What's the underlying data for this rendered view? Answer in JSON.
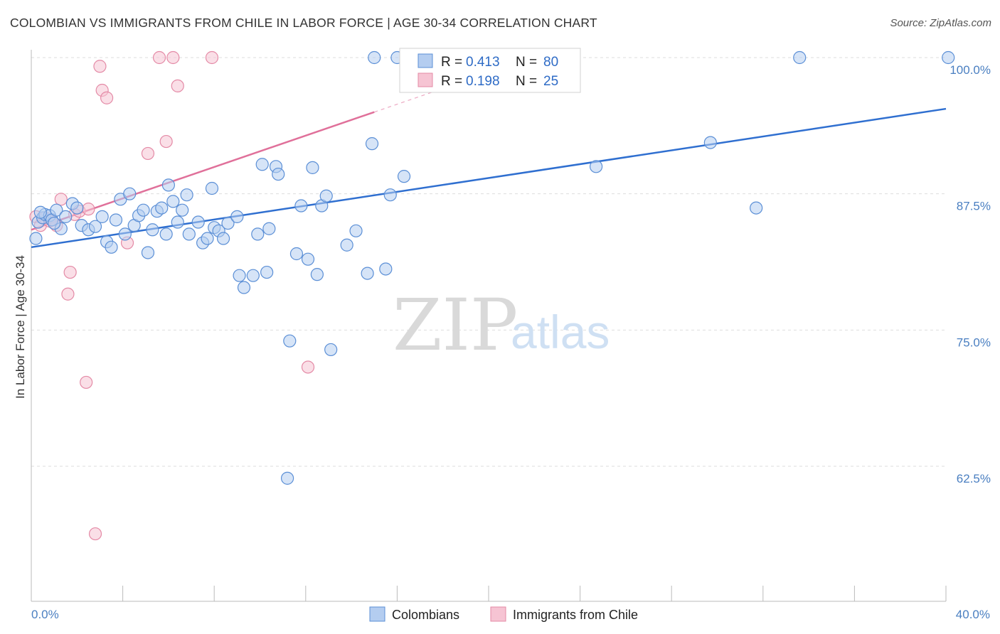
{
  "title": "COLOMBIAN VS IMMIGRANTS FROM CHILE IN LABOR FORCE | AGE 30-34 CORRELATION CHART",
  "source": "Source: ZipAtlas.com",
  "watermark": {
    "zip": "ZIP",
    "atlas": "atlas"
  },
  "colors": {
    "blue_fill": "#b4cdf0",
    "blue_stroke": "#5b8fd6",
    "blue_line": "#2f6fd0",
    "pink_fill": "#f6c4d3",
    "pink_stroke": "#e48aa6",
    "pink_line": "#e0709a",
    "grid": "#dddddd",
    "axis_text": "#4a7fc1"
  },
  "legend": {
    "rows": [
      {
        "r_label": "R =",
        "r_value": "0.413",
        "n_label": "N =",
        "n_value": "80"
      },
      {
        "r_label": "R =",
        "r_value": "0.198",
        "n_label": "N =",
        "n_value": "25"
      }
    ]
  },
  "chart_data": {
    "type": "scatter",
    "ylabel": "In Labor Force | Age 30-34",
    "xlim": [
      0,
      40
    ],
    "ylim": [
      50,
      100.5
    ],
    "x_tick_labels": [
      "0.0%",
      "40.0%"
    ],
    "y_ticks": [
      {
        "value": 100,
        "label": "100.0%"
      },
      {
        "value": 87.5,
        "label": "87.5%"
      },
      {
        "value": 75,
        "label": "75.0%"
      },
      {
        "value": 62.5,
        "label": "62.5%"
      }
    ],
    "series": [
      {
        "name": "Colombians",
        "trend": {
          "x0": 0,
          "y0": 82.6,
          "x1": 40,
          "y1": 95.3
        },
        "points": [
          [
            0.2,
            83.4
          ],
          [
            0.3,
            84.9
          ],
          [
            0.5,
            85.3
          ],
          [
            0.6,
            85.6
          ],
          [
            0.8,
            85.5
          ],
          [
            0.9,
            85.1
          ],
          [
            1.1,
            86.0
          ],
          [
            1.3,
            84.3
          ],
          [
            1.5,
            85.4
          ],
          [
            1.8,
            86.6
          ],
          [
            2.0,
            86.2
          ],
          [
            2.2,
            84.6
          ],
          [
            2.5,
            84.2
          ],
          [
            2.8,
            84.5
          ],
          [
            3.1,
            85.4
          ],
          [
            3.3,
            83.1
          ],
          [
            3.5,
            82.6
          ],
          [
            3.7,
            85.1
          ],
          [
            3.9,
            87.0
          ],
          [
            4.1,
            83.8
          ],
          [
            4.3,
            87.5
          ],
          [
            4.5,
            84.6
          ],
          [
            4.7,
            85.5
          ],
          [
            4.9,
            86.0
          ],
          [
            5.1,
            82.1
          ],
          [
            5.3,
            84.2
          ],
          [
            5.5,
            85.9
          ],
          [
            5.7,
            86.2
          ],
          [
            5.9,
            83.8
          ],
          [
            6.0,
            88.3
          ],
          [
            6.2,
            86.8
          ],
          [
            6.4,
            84.9
          ],
          [
            6.6,
            86.0
          ],
          [
            6.8,
            87.4
          ],
          [
            6.9,
            83.8
          ],
          [
            7.3,
            84.9
          ],
          [
            7.5,
            83.0
          ],
          [
            7.7,
            83.4
          ],
          [
            7.9,
            88.0
          ],
          [
            8.0,
            84.4
          ],
          [
            8.2,
            84.1
          ],
          [
            8.4,
            83.4
          ],
          [
            8.6,
            84.8
          ],
          [
            9.0,
            85.4
          ],
          [
            9.1,
            80.0
          ],
          [
            9.3,
            78.9
          ],
          [
            9.7,
            80.0
          ],
          [
            9.9,
            83.8
          ],
          [
            10.1,
            90.2
          ],
          [
            10.3,
            80.3
          ],
          [
            10.4,
            84.3
          ],
          [
            10.7,
            90.0
          ],
          [
            10.8,
            89.3
          ],
          [
            11.2,
            61.4
          ],
          [
            11.3,
            74.0
          ],
          [
            11.6,
            82.0
          ],
          [
            11.8,
            86.4
          ],
          [
            12.1,
            81.5
          ],
          [
            12.3,
            89.9
          ],
          [
            12.5,
            80.1
          ],
          [
            12.7,
            86.4
          ],
          [
            12.9,
            87.3
          ],
          [
            13.1,
            73.2
          ],
          [
            13.8,
            82.8
          ],
          [
            14.2,
            84.1
          ],
          [
            14.7,
            80.2
          ],
          [
            14.9,
            92.1
          ],
          [
            15.0,
            100.0
          ],
          [
            15.5,
            80.6
          ],
          [
            15.7,
            87.4
          ],
          [
            16.0,
            100.0
          ],
          [
            16.3,
            89.1
          ],
          [
            23.6,
            100.0
          ],
          [
            24.7,
            90.0
          ],
          [
            29.7,
            92.2
          ],
          [
            31.7,
            86.2
          ],
          [
            33.6,
            100.0
          ],
          [
            40.1,
            100.0
          ],
          [
            0.4,
            85.8
          ],
          [
            1.0,
            84.8
          ]
        ]
      },
      {
        "name": "Immigrants from Chile",
        "trend": {
          "x0": 0,
          "y0": 84.2,
          "x1": 15,
          "y1": 95.0
        },
        "points": [
          [
            0.2,
            85.4
          ],
          [
            0.4,
            84.6
          ],
          [
            0.6,
            85.3
          ],
          [
            0.8,
            85.0
          ],
          [
            1.1,
            84.6
          ],
          [
            1.3,
            87.0
          ],
          [
            1.6,
            78.3
          ],
          [
            1.7,
            80.3
          ],
          [
            1.9,
            85.6
          ],
          [
            2.1,
            85.9
          ],
          [
            2.4,
            70.2
          ],
          [
            2.5,
            86.1
          ],
          [
            2.8,
            56.3
          ],
          [
            3.0,
            99.2
          ],
          [
            3.1,
            97.0
          ],
          [
            3.3,
            96.3
          ],
          [
            4.2,
            83.0
          ],
          [
            5.1,
            91.2
          ],
          [
            5.6,
            100.0
          ],
          [
            5.9,
            92.3
          ],
          [
            6.2,
            100.0
          ],
          [
            6.4,
            97.4
          ],
          [
            7.9,
            100.0
          ],
          [
            12.1,
            71.6
          ],
          [
            0.9,
            85.1
          ]
        ]
      }
    ]
  },
  "bottom_legend": {
    "items": [
      "Colombians",
      "Immigrants from Chile"
    ]
  }
}
